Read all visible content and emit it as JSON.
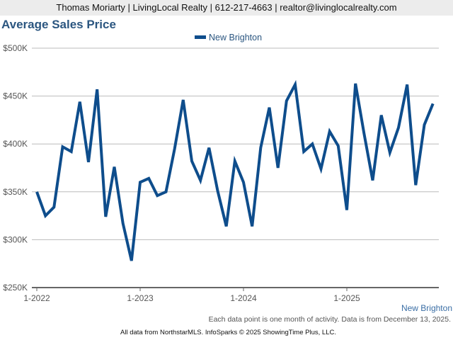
{
  "header": {
    "text": "Thomas Moriarty | LivingLocal Realty | 612-217-4663 | realtor@livinglocalrealty.com"
  },
  "region_label": "New Brighton",
  "note": "Each data point is one month of activity. Data is from December 13, 2025.",
  "footer": "All data from NorthstarMLS. InfoSparks © 2025 ShowingTime Plus, LLC.",
  "chart_data": {
    "type": "line",
    "title": "Average Sales Price",
    "xlabel": "",
    "ylabel": "",
    "ylim": [
      250000,
      500000
    ],
    "yticks": [
      250000,
      300000,
      350000,
      400000,
      450000,
      500000
    ],
    "ytick_labels": [
      "$250K",
      "$300K",
      "$350K",
      "$400K",
      "$450K",
      "$500K"
    ],
    "xtick_labels": [
      "1-2022",
      "1-2023",
      "1-2024",
      "1-2025"
    ],
    "xtick_months": [
      0,
      12,
      24,
      36
    ],
    "grid": true,
    "legend": {
      "position": "top-center",
      "entries": [
        "New Brighton"
      ]
    },
    "series": [
      {
        "name": "New Brighton",
        "color": "#0e4d8c",
        "start": "1-2022",
        "values": [
          350,
          325,
          334,
          397,
          392,
          444,
          381,
          457,
          324,
          376,
          317,
          278,
          360,
          364,
          346,
          350,
          395,
          446,
          382,
          362,
          396,
          351,
          314,
          382,
          360,
          314,
          396,
          438,
          375,
          445,
          462,
          392,
          400,
          374,
          413,
          398,
          331,
          463,
          411,
          362,
          430,
          391,
          417,
          462,
          357,
          420,
          442
        ]
      }
    ]
  }
}
